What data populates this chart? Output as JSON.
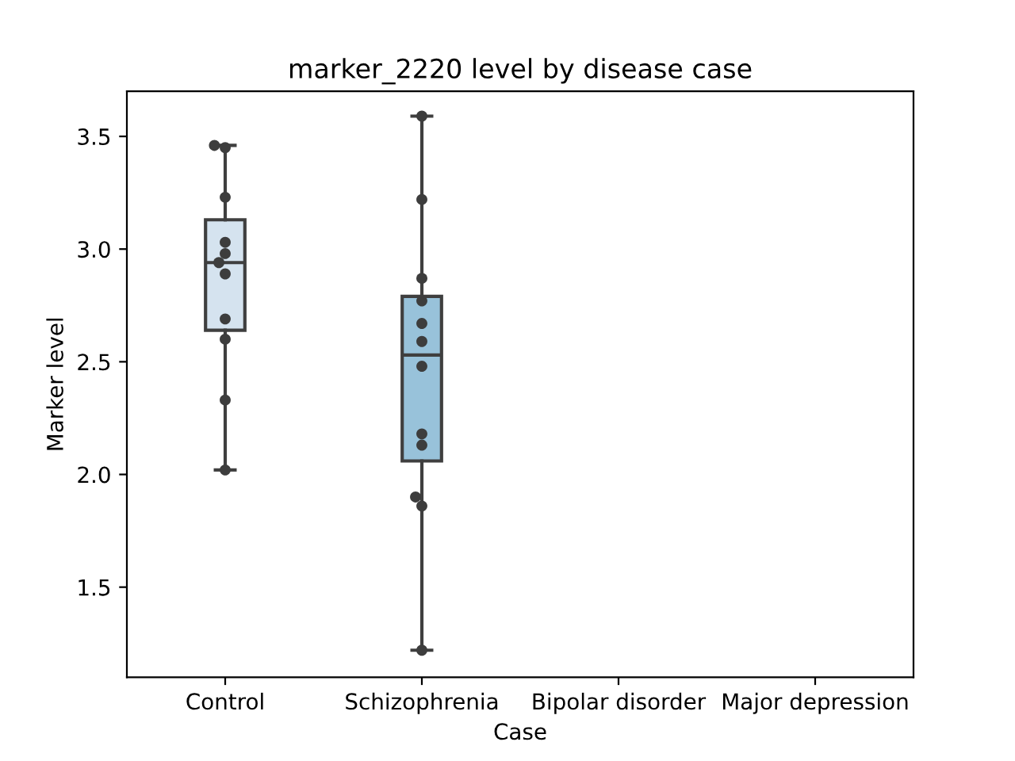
{
  "chart_data": {
    "type": "box",
    "title": "marker_2220 level by disease case",
    "xlabel": "Case",
    "ylabel": "Marker level",
    "categories": [
      "Control",
      "Schizophrenia",
      "Bipolar disorder",
      "Major depression"
    ],
    "series": [
      {
        "color": "#3f3f3f",
        "colors": [
          "#d5e3ef",
          "#98c2da",
          null,
          null
        ],
        "boxes": [
          {
            "low": 2.02,
            "q1": 2.64,
            "median": 2.94,
            "q3": 3.13,
            "high": 3.46
          },
          {
            "low": 1.22,
            "q1": 2.06,
            "median": 2.53,
            "q3": 2.79,
            "high": 3.59
          },
          null,
          null
        ]
      },
      {
        "type": "scatter",
        "color": "#3d3d3d",
        "marker": "circle",
        "x": [
          "Control",
          "Control",
          "Control",
          "Control",
          "Control",
          "Control",
          "Control",
          "Control",
          "Control",
          "Control",
          "Control",
          "Schizophrenia",
          "Schizophrenia",
          "Schizophrenia",
          "Schizophrenia",
          "Schizophrenia",
          "Schizophrenia",
          "Schizophrenia",
          "Schizophrenia",
          "Schizophrenia",
          "Schizophrenia",
          "Schizophrenia",
          "Schizophrenia"
        ],
        "values": [
          3.45,
          3.46,
          3.23,
          3.03,
          2.98,
          2.94,
          2.89,
          2.69,
          2.6,
          2.33,
          2.02,
          3.59,
          3.22,
          2.87,
          2.77,
          2.67,
          2.59,
          2.48,
          2.18,
          2.13,
          1.86,
          1.9,
          1.22
        ]
      }
    ],
    "ylim": [
      1.1,
      3.7
    ],
    "yticks": [
      1.5,
      {
        "value": 2,
        "label": "2.0"
      },
      2.5,
      {
        "value": 3,
        "label": "3.0"
      },
      3.5
    ],
    "grid": false
  }
}
